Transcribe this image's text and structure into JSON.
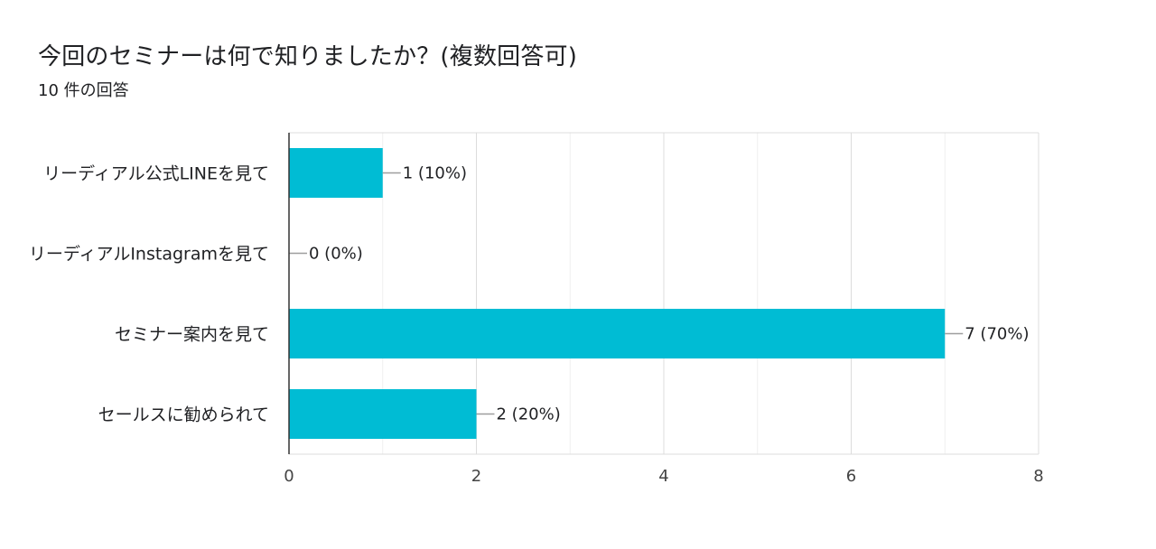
{
  "header": {
    "title": "今回のセミナーは何で知りましたか？(複数回答可)",
    "response_count": "10 件の回答"
  },
  "chart_data": {
    "type": "bar",
    "orientation": "horizontal",
    "categories": [
      "リーディアル公式LINEを見て",
      "リーディアルInstagramを見て",
      "セミナー案内を見て",
      "セールスに勧められて"
    ],
    "values": [
      1,
      0,
      7,
      2
    ],
    "data_labels": [
      "1 (10%)",
      "0 (0%)",
      "7 (70%)",
      "2 (20%)"
    ],
    "xlim": [
      0,
      8
    ],
    "x_ticks": [
      0,
      2,
      4,
      6,
      8
    ],
    "grid": true,
    "bar_color": "#00bcd4"
  },
  "colors": {
    "bar": "#00bcd4",
    "grid": "#e6e6e6",
    "axis": "#333333",
    "text": "#202124"
  }
}
